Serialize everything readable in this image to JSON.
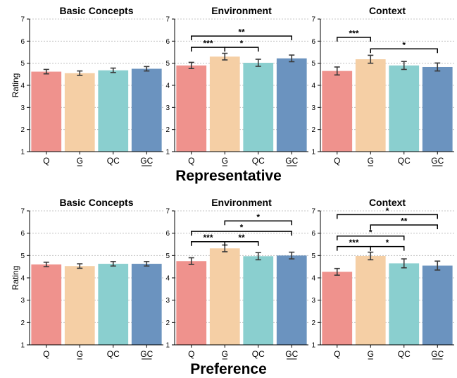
{
  "chart_data": [
    {
      "type": "bar",
      "group": "Representative",
      "title": "Basic Concepts",
      "ylabel": "Rating",
      "ylim": [
        1,
        7
      ],
      "categories": [
        "Q",
        "G",
        "QC",
        "GC"
      ],
      "underlined_categories": [
        "G",
        "GC"
      ],
      "values": [
        4.62,
        4.55,
        4.68,
        4.75
      ],
      "errors": [
        0.1,
        0.1,
        0.1,
        0.1
      ],
      "colors": [
        "#ef928d",
        "#f5cfa5",
        "#8acfcf",
        "#6b93bf"
      ],
      "significance": []
    },
    {
      "type": "bar",
      "group": "Representative",
      "title": "Environment",
      "ylim": [
        1,
        7
      ],
      "categories": [
        "Q",
        "G",
        "QC",
        "GC"
      ],
      "underlined_categories": [
        "G",
        "GC"
      ],
      "values": [
        4.9,
        5.3,
        5.02,
        5.22
      ],
      "errors": [
        0.14,
        0.15,
        0.16,
        0.15
      ],
      "colors": [
        "#ef928d",
        "#f5cfa5",
        "#8acfcf",
        "#6b93bf"
      ],
      "significance": [
        {
          "from": "Q",
          "to": "G",
          "label": "***",
          "level": 5.72
        },
        {
          "from": "G",
          "to": "QC",
          "label": "*",
          "level": 5.72
        },
        {
          "from": "Q",
          "to": "GC",
          "label": "**",
          "level": 6.23
        }
      ]
    },
    {
      "type": "bar",
      "group": "Representative",
      "title": "Context",
      "ylim": [
        1,
        7
      ],
      "categories": [
        "Q",
        "G",
        "QC",
        "GC"
      ],
      "underlined_categories": [
        "G",
        "GC"
      ],
      "values": [
        4.65,
        5.18,
        4.9,
        4.83
      ],
      "errors": [
        0.18,
        0.18,
        0.18,
        0.18
      ],
      "colors": [
        "#ef928d",
        "#f5cfa5",
        "#8acfcf",
        "#6b93bf"
      ],
      "significance": [
        {
          "from": "Q",
          "to": "G",
          "label": "***",
          "level": 6.17
        },
        {
          "from": "G",
          "to": "GC",
          "label": "*",
          "level": 5.65
        }
      ]
    },
    {
      "type": "bar",
      "group": "Preference",
      "title": "Basic Concepts",
      "ylabel": "Rating",
      "ylim": [
        1,
        7
      ],
      "categories": [
        "Q",
        "G",
        "QC",
        "GC"
      ],
      "underlined_categories": [
        "G",
        "GC"
      ],
      "values": [
        4.6,
        4.53,
        4.63,
        4.63
      ],
      "errors": [
        0.1,
        0.1,
        0.1,
        0.1
      ],
      "colors": [
        "#ef928d",
        "#f5cfa5",
        "#8acfcf",
        "#6b93bf"
      ],
      "significance": []
    },
    {
      "type": "bar",
      "group": "Preference",
      "title": "Environment",
      "ylim": [
        1,
        7
      ],
      "categories": [
        "Q",
        "G",
        "QC",
        "GC"
      ],
      "underlined_categories": [
        "G",
        "GC"
      ],
      "values": [
        4.75,
        5.32,
        4.97,
        5.0
      ],
      "errors": [
        0.15,
        0.15,
        0.16,
        0.15
      ],
      "colors": [
        "#ef928d",
        "#f5cfa5",
        "#8acfcf",
        "#6b93bf"
      ],
      "significance": [
        {
          "from": "Q",
          "to": "G",
          "label": "***",
          "level": 5.62
        },
        {
          "from": "G",
          "to": "QC",
          "label": "**",
          "level": 5.62
        },
        {
          "from": "Q",
          "to": "GC",
          "label": "*",
          "level": 6.08
        },
        {
          "from": "G",
          "to": "GC",
          "label": "*",
          "level": 6.55
        }
      ]
    },
    {
      "type": "bar",
      "group": "Preference",
      "title": "Context",
      "ylim": [
        1,
        7
      ],
      "categories": [
        "Q",
        "G",
        "QC",
        "GC"
      ],
      "underlined_categories": [
        "G",
        "GC"
      ],
      "values": [
        4.27,
        4.98,
        4.65,
        4.55
      ],
      "errors": [
        0.15,
        0.17,
        0.2,
        0.2
      ],
      "colors": [
        "#ef928d",
        "#f5cfa5",
        "#8acfcf",
        "#6b93bf"
      ],
      "significance": [
        {
          "from": "Q",
          "to": "G",
          "label": "***",
          "level": 5.4
        },
        {
          "from": "G",
          "to": "QC",
          "label": "*",
          "level": 5.4
        },
        {
          "from": "Q",
          "to": "QC",
          "label": "*",
          "level": 5.87
        },
        {
          "from": "G",
          "to": "GC",
          "label": "**",
          "level": 6.37
        },
        {
          "from": "Q",
          "to": "GC",
          "label": "*",
          "level": 6.83
        }
      ]
    }
  ],
  "row_titles": {
    "representative": "Representative",
    "preference": "Preference"
  },
  "style": {
    "grid": "dotted horizontal",
    "error_bar_color": "#3a3a3a"
  }
}
